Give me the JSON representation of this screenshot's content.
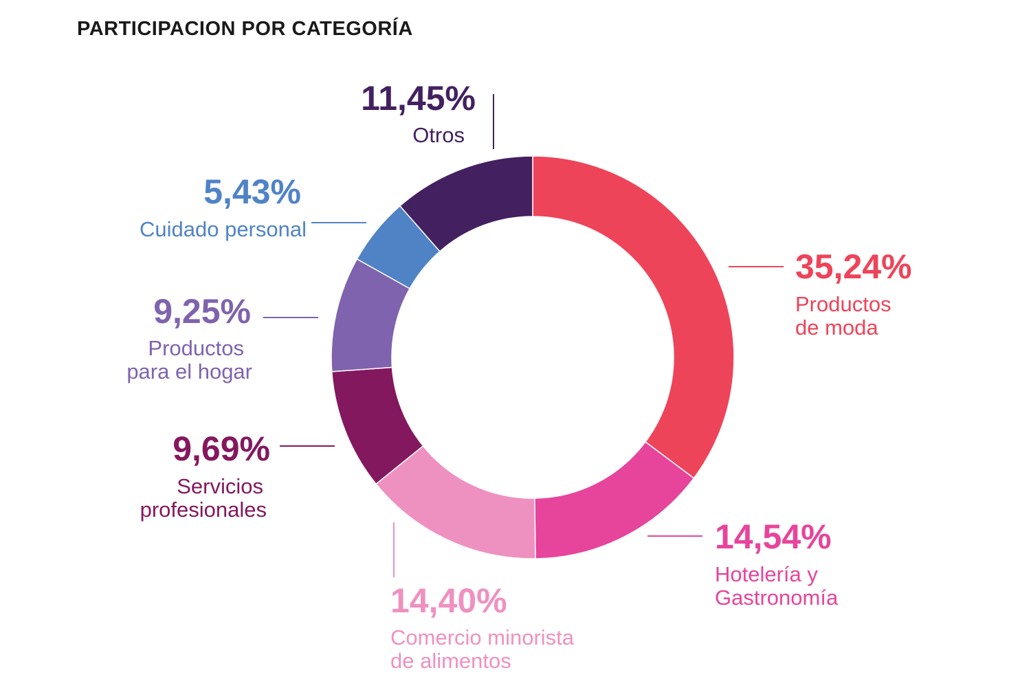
{
  "chart_data": {
    "type": "pie",
    "title": "PARTICIPACION POR CATEGORÍA",
    "slices": [
      {
        "label": "Productos de moda",
        "label_lines": [
          "Productos",
          "de moda"
        ],
        "value": 35.24,
        "value_text": "35,24%",
        "color": "#ee4459"
      },
      {
        "label": "Hotelería y Gastronomía",
        "label_lines": [
          "Hotelería y",
          "Gastronomía"
        ],
        "value": 14.54,
        "value_text": "14,54%",
        "color": "#e7449c"
      },
      {
        "label": "Comercio minorista de alimentos",
        "label_lines": [
          "Comercio minorista",
          "de alimentos"
        ],
        "value": 14.4,
        "value_text": "14,40%",
        "color": "#ef91c0"
      },
      {
        "label": "Servicios profesionales",
        "label_lines": [
          "Servicios",
          "profesionales"
        ],
        "value": 9.69,
        "value_text": "9,69%",
        "color": "#84185e"
      },
      {
        "label": "Productos para el hogar",
        "label_lines": [
          "Productos",
          "para el hogar"
        ],
        "value": 9.25,
        "value_text": "9,25%",
        "color": "#7f63ae"
      },
      {
        "label": "Cuidado personal",
        "label_lines": [
          "Cuidado personal"
        ],
        "value": 5.43,
        "value_text": "5,43%",
        "color": "#4f83c6"
      },
      {
        "label": "Otros",
        "label_lines": [
          "Otros"
        ],
        "value": 11.45,
        "value_text": "11,45%",
        "color": "#432160"
      }
    ]
  }
}
